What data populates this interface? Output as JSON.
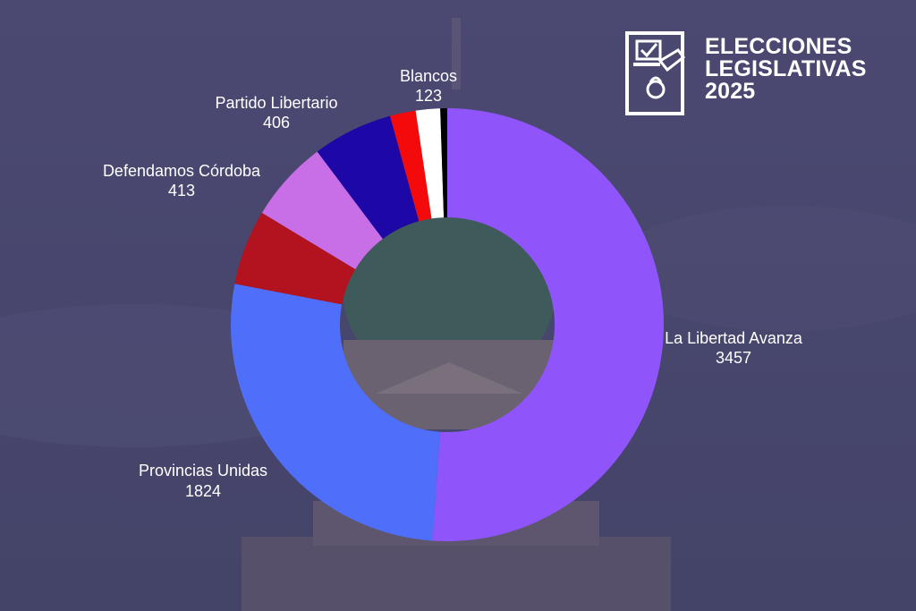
{
  "header": {
    "title_line1": "ELECCIONES",
    "title_line2": "LEGISLATIVAS",
    "title_line3": "2025",
    "icon": "ballot-box-icon"
  },
  "chart_data": {
    "type": "pie",
    "donut": true,
    "title": "",
    "slices": [
      {
        "label": "La Libertad Avanza",
        "value": 3457,
        "color": "#8f55fb"
      },
      {
        "label": "Provincias Unidas",
        "value": 1824,
        "color": "#4f6ffb"
      },
      {
        "label": "",
        "value": 380,
        "color": "#b2131f"
      },
      {
        "label": "Defendamos Córdoba",
        "value": 413,
        "color": "#c86ee6"
      },
      {
        "label": "Partido Libertario",
        "value": 406,
        "color": "#1d07a7"
      },
      {
        "label": "",
        "value": 130,
        "color": "#f40a0a"
      },
      {
        "label": "Blancos",
        "value": 123,
        "color": "#ffffff"
      },
      {
        "label": "",
        "value": 35,
        "color": "#000000"
      }
    ]
  }
}
